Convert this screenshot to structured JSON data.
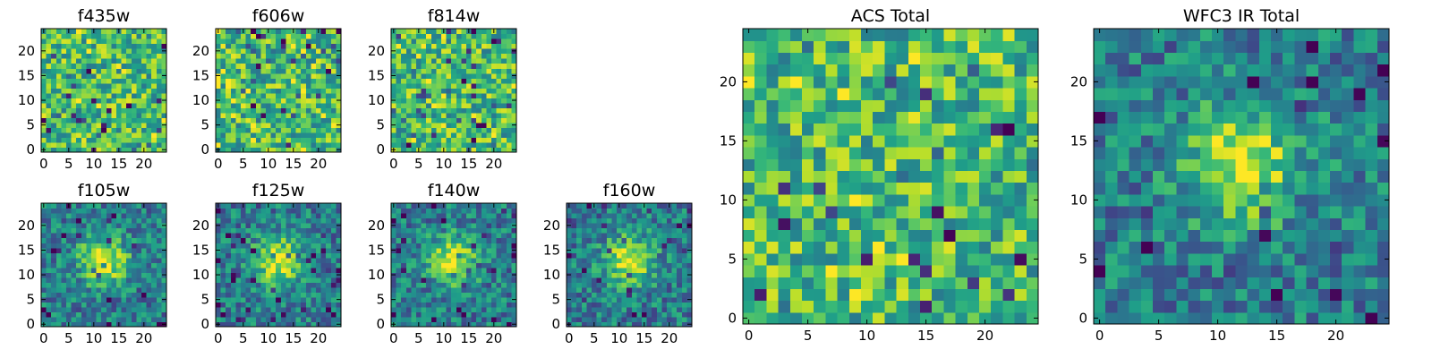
{
  "chart_data": [
    {
      "type": "heatmap",
      "title": "f435w",
      "colormap": "viridis",
      "xlim": [
        0,
        24
      ],
      "ylim": [
        0,
        24
      ],
      "xticks": [
        0,
        5,
        10,
        15,
        20
      ],
      "yticks": [
        0,
        5,
        10,
        15,
        20
      ],
      "grid_size": 25,
      "profile": "noise",
      "center": [
        12,
        12
      ],
      "seed": 11
    },
    {
      "type": "heatmap",
      "title": "f606w",
      "colormap": "viridis",
      "xlim": [
        0,
        24
      ],
      "ylim": [
        0,
        24
      ],
      "xticks": [
        0,
        5,
        10,
        15,
        20
      ],
      "yticks": [
        0,
        5,
        10,
        15,
        20
      ],
      "grid_size": 25,
      "profile": "noise",
      "center": [
        12,
        12
      ],
      "seed": 23
    },
    {
      "type": "heatmap",
      "title": "f814w",
      "colormap": "viridis",
      "xlim": [
        0,
        24
      ],
      "ylim": [
        0,
        24
      ],
      "xticks": [
        0,
        5,
        10,
        15,
        20
      ],
      "yticks": [
        0,
        5,
        10,
        15,
        20
      ],
      "grid_size": 25,
      "profile": "noise",
      "center": [
        12,
        12
      ],
      "seed": 37
    },
    {
      "type": "heatmap",
      "title": "f105w",
      "colormap": "viridis",
      "xlim": [
        0,
        24
      ],
      "ylim": [
        0,
        24
      ],
      "xticks": [
        0,
        5,
        10,
        15,
        20
      ],
      "yticks": [
        0,
        5,
        10,
        15,
        20
      ],
      "grid_size": 25,
      "profile": "source",
      "center": [
        12,
        13
      ],
      "seed": 41
    },
    {
      "type": "heatmap",
      "title": "f125w",
      "colormap": "viridis",
      "xlim": [
        0,
        24
      ],
      "ylim": [
        0,
        24
      ],
      "xticks": [
        0,
        5,
        10,
        15,
        20
      ],
      "yticks": [
        0,
        5,
        10,
        15,
        20
      ],
      "grid_size": 25,
      "profile": "source",
      "center": [
        12,
        13
      ],
      "seed": 53
    },
    {
      "type": "heatmap",
      "title": "f140w",
      "colormap": "viridis",
      "xlim": [
        0,
        24
      ],
      "ylim": [
        0,
        24
      ],
      "xticks": [
        0,
        5,
        10,
        15,
        20
      ],
      "yticks": [
        0,
        5,
        10,
        15,
        20
      ],
      "grid_size": 25,
      "profile": "source",
      "center": [
        12,
        13
      ],
      "seed": 67
    },
    {
      "type": "heatmap",
      "title": "f160w",
      "colormap": "viridis",
      "xlim": [
        0,
        24
      ],
      "ylim": [
        0,
        24
      ],
      "xticks": [
        0,
        5,
        10,
        15,
        20
      ],
      "yticks": [
        0,
        5,
        10,
        15,
        20
      ],
      "grid_size": 25,
      "profile": "source",
      "center": [
        12,
        13
      ],
      "seed": 79
    },
    {
      "type": "heatmap",
      "title": "ACS Total",
      "colormap": "viridis",
      "xlim": [
        0,
        24
      ],
      "ylim": [
        0,
        24
      ],
      "xticks": [
        0,
        5,
        10,
        15,
        20
      ],
      "yticks": [
        0,
        5,
        10,
        15,
        20
      ],
      "grid_size": 25,
      "profile": "noise",
      "center": [
        12,
        12
      ],
      "seed": 97
    },
    {
      "type": "heatmap",
      "title": "WFC3 IR Total",
      "colormap": "viridis",
      "xlim": [
        0,
        24
      ],
      "ylim": [
        0,
        24
      ],
      "xticks": [
        0,
        5,
        10,
        15,
        20
      ],
      "yticks": [
        0,
        5,
        10,
        15,
        20
      ],
      "grid_size": 25,
      "profile": "source",
      "center": [
        12,
        13
      ],
      "seed": 113
    }
  ]
}
